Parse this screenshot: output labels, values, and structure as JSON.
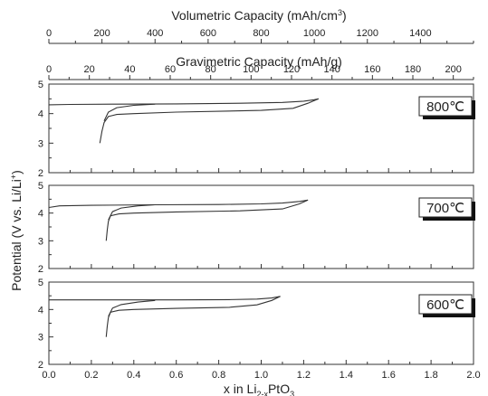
{
  "chart_data": {
    "type": "line",
    "top_axes": [
      {
        "label": "Volumetric Capacity (mAh/cm",
        "label_sup": "3",
        "label_end": ")",
        "range": [
          0,
          1600
        ],
        "ticks": [
          0,
          200,
          400,
          600,
          800,
          1000,
          1200,
          1400
        ]
      },
      {
        "label": "Gravimetric Capacity (mAh/g)",
        "range": [
          0,
          210
        ],
        "ticks": [
          0,
          20,
          40,
          60,
          80,
          100,
          120,
          140,
          160,
          180,
          200
        ]
      }
    ],
    "xlabel": "x in Li",
    "xlabel_sub": "2-x",
    "xlabel_end": "PtO",
    "xlabel_sub2": "3",
    "xlim": [
      0.0,
      2.0
    ],
    "xticks": [
      "0.0",
      "0.2",
      "0.4",
      "0.6",
      "0.8",
      "1.0",
      "1.2",
      "1.4",
      "1.6",
      "1.8",
      "2.0"
    ],
    "ylabel": "Potential (V vs. Li/Li",
    "ylabel_sup": "+",
    "ylabel_end": ")",
    "ylim": [
      2,
      5
    ],
    "yticks": [
      "2",
      "3",
      "4",
      "5"
    ],
    "panels": [
      {
        "label": "800℃",
        "charge": [
          [
            0.0,
            4.3
          ],
          [
            0.1,
            4.31
          ],
          [
            0.3,
            4.32
          ],
          [
            0.6,
            4.33
          ],
          [
            0.9,
            4.35
          ],
          [
            1.1,
            4.38
          ],
          [
            1.2,
            4.42
          ],
          [
            1.25,
            4.47
          ],
          [
            1.27,
            4.5
          ]
        ],
        "discharge": [
          [
            1.27,
            4.5
          ],
          [
            1.22,
            4.35
          ],
          [
            1.15,
            4.18
          ],
          [
            1.0,
            4.11
          ],
          [
            0.6,
            4.05
          ],
          [
            0.4,
            4.0
          ],
          [
            0.32,
            3.97
          ],
          [
            0.28,
            3.9
          ],
          [
            0.26,
            3.7
          ],
          [
            0.25,
            3.4
          ],
          [
            0.24,
            3.0
          ]
        ],
        "loop": [
          [
            0.26,
            3.75
          ],
          [
            0.28,
            4.05
          ],
          [
            0.32,
            4.2
          ],
          [
            0.4,
            4.28
          ],
          [
            0.5,
            4.32
          ]
        ]
      },
      {
        "label": "700℃",
        "charge": [
          [
            0.0,
            4.2
          ],
          [
            0.05,
            4.26
          ],
          [
            0.2,
            4.28
          ],
          [
            0.5,
            4.3
          ],
          [
            0.8,
            4.31
          ],
          [
            1.0,
            4.33
          ],
          [
            1.1,
            4.36
          ],
          [
            1.18,
            4.42
          ],
          [
            1.22,
            4.47
          ]
        ],
        "discharge": [
          [
            1.22,
            4.47
          ],
          [
            1.18,
            4.33
          ],
          [
            1.1,
            4.15
          ],
          [
            0.9,
            4.08
          ],
          [
            0.6,
            4.04
          ],
          [
            0.4,
            4.0
          ],
          [
            0.33,
            3.97
          ],
          [
            0.29,
            3.9
          ],
          [
            0.28,
            3.7
          ],
          [
            0.275,
            3.4
          ],
          [
            0.27,
            3.0
          ]
        ],
        "loop": [
          [
            0.28,
            3.75
          ],
          [
            0.3,
            4.05
          ],
          [
            0.34,
            4.18
          ],
          [
            0.42,
            4.26
          ],
          [
            0.5,
            4.3
          ]
        ]
      },
      {
        "label": "600℃",
        "charge": [
          [
            0.0,
            4.35
          ],
          [
            0.1,
            4.35
          ],
          [
            0.3,
            4.35
          ],
          [
            0.6,
            4.35
          ],
          [
            0.85,
            4.36
          ],
          [
            0.98,
            4.38
          ],
          [
            1.05,
            4.42
          ],
          [
            1.09,
            4.48
          ]
        ],
        "discharge": [
          [
            1.09,
            4.48
          ],
          [
            1.05,
            4.33
          ],
          [
            0.98,
            4.17
          ],
          [
            0.85,
            4.08
          ],
          [
            0.6,
            4.04
          ],
          [
            0.4,
            4.0
          ],
          [
            0.33,
            3.97
          ],
          [
            0.29,
            3.9
          ],
          [
            0.28,
            3.7
          ],
          [
            0.275,
            3.4
          ],
          [
            0.27,
            3.0
          ]
        ],
        "loop": [
          [
            0.28,
            3.75
          ],
          [
            0.3,
            4.05
          ],
          [
            0.34,
            4.18
          ],
          [
            0.42,
            4.27
          ],
          [
            0.5,
            4.33
          ]
        ]
      }
    ]
  }
}
